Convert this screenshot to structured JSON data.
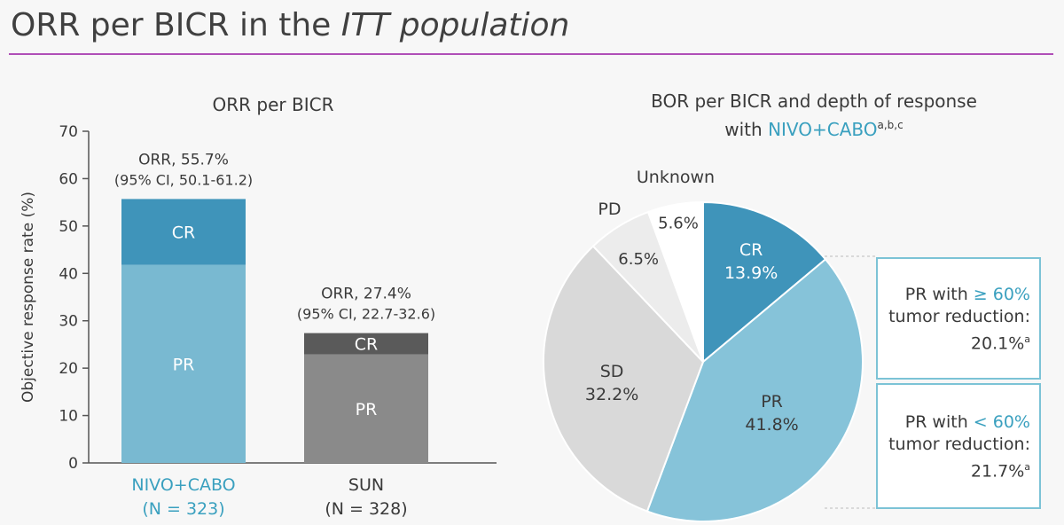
{
  "header": {
    "title_main": "ORR per BICR in the",
    "title_italic": "ITT population"
  },
  "chart_data": [
    {
      "type": "bar",
      "title": "ORR per BICR",
      "ylabel": "Objective response rate (%)",
      "xlabel": "",
      "ylim": [
        0,
        70
      ],
      "yticks": [
        0,
        10,
        20,
        30,
        40,
        50,
        60,
        70
      ],
      "stacked": true,
      "categories": [
        "NIVO+CABO",
        "SUN"
      ],
      "category_n": [
        "(N = 323)",
        "(N = 328)"
      ],
      "series": [
        {
          "name": "PR",
          "values": [
            41.8,
            22.9
          ],
          "colors": [
            "#79b9d1",
            "#8a8a8a"
          ]
        },
        {
          "name": "CR",
          "values": [
            13.9,
            4.5
          ],
          "colors": [
            "#3f94ba",
            "#5a5a5a"
          ]
        }
      ],
      "totals": [
        55.7,
        27.4
      ],
      "annotations": [
        {
          "line1": "ORR, 55.7%",
          "line2": "(95% CI, 50.1-61.2)"
        },
        {
          "line1": "ORR, 27.4%",
          "line2": "(95% CI, 22.7-32.6)"
        }
      ],
      "category_colors": [
        "#3aa0bf",
        "#3a3a3a"
      ]
    },
    {
      "type": "pie",
      "title_line1": "BOR per BICR and depth of response",
      "title_line2_prefix": "with",
      "title_line2_highlight": "NIVO+CABO",
      "title_superscript": "a,b,c",
      "slices": [
        {
          "label": "CR",
          "value": 13.9,
          "value_label": "13.9%",
          "color": "#3f94ba"
        },
        {
          "label": "PR",
          "value": 41.8,
          "value_label": "41.8%",
          "color": "#86c3d9"
        },
        {
          "label": "SD",
          "value": 32.2,
          "value_label": "32.2%",
          "color": "#d9d9d9"
        },
        {
          "label": "PD",
          "value": 6.5,
          "value_label": "6.5%",
          "color": "#ececec"
        },
        {
          "label": "Unknown",
          "value": 5.6,
          "value_label": "5.6%",
          "color": "#ffffff"
        }
      ]
    }
  ],
  "pr_breakdown": [
    {
      "line1_prefix": "PR with",
      "line1_highlight": "≥ 60%",
      "line2": "tumor reduction:",
      "value": "20.1%",
      "sup": "a"
    },
    {
      "line1_prefix": "PR with",
      "line1_highlight": "< 60%",
      "line2": "tumor reduction:",
      "value": "21.7%",
      "sup": "a"
    }
  ]
}
